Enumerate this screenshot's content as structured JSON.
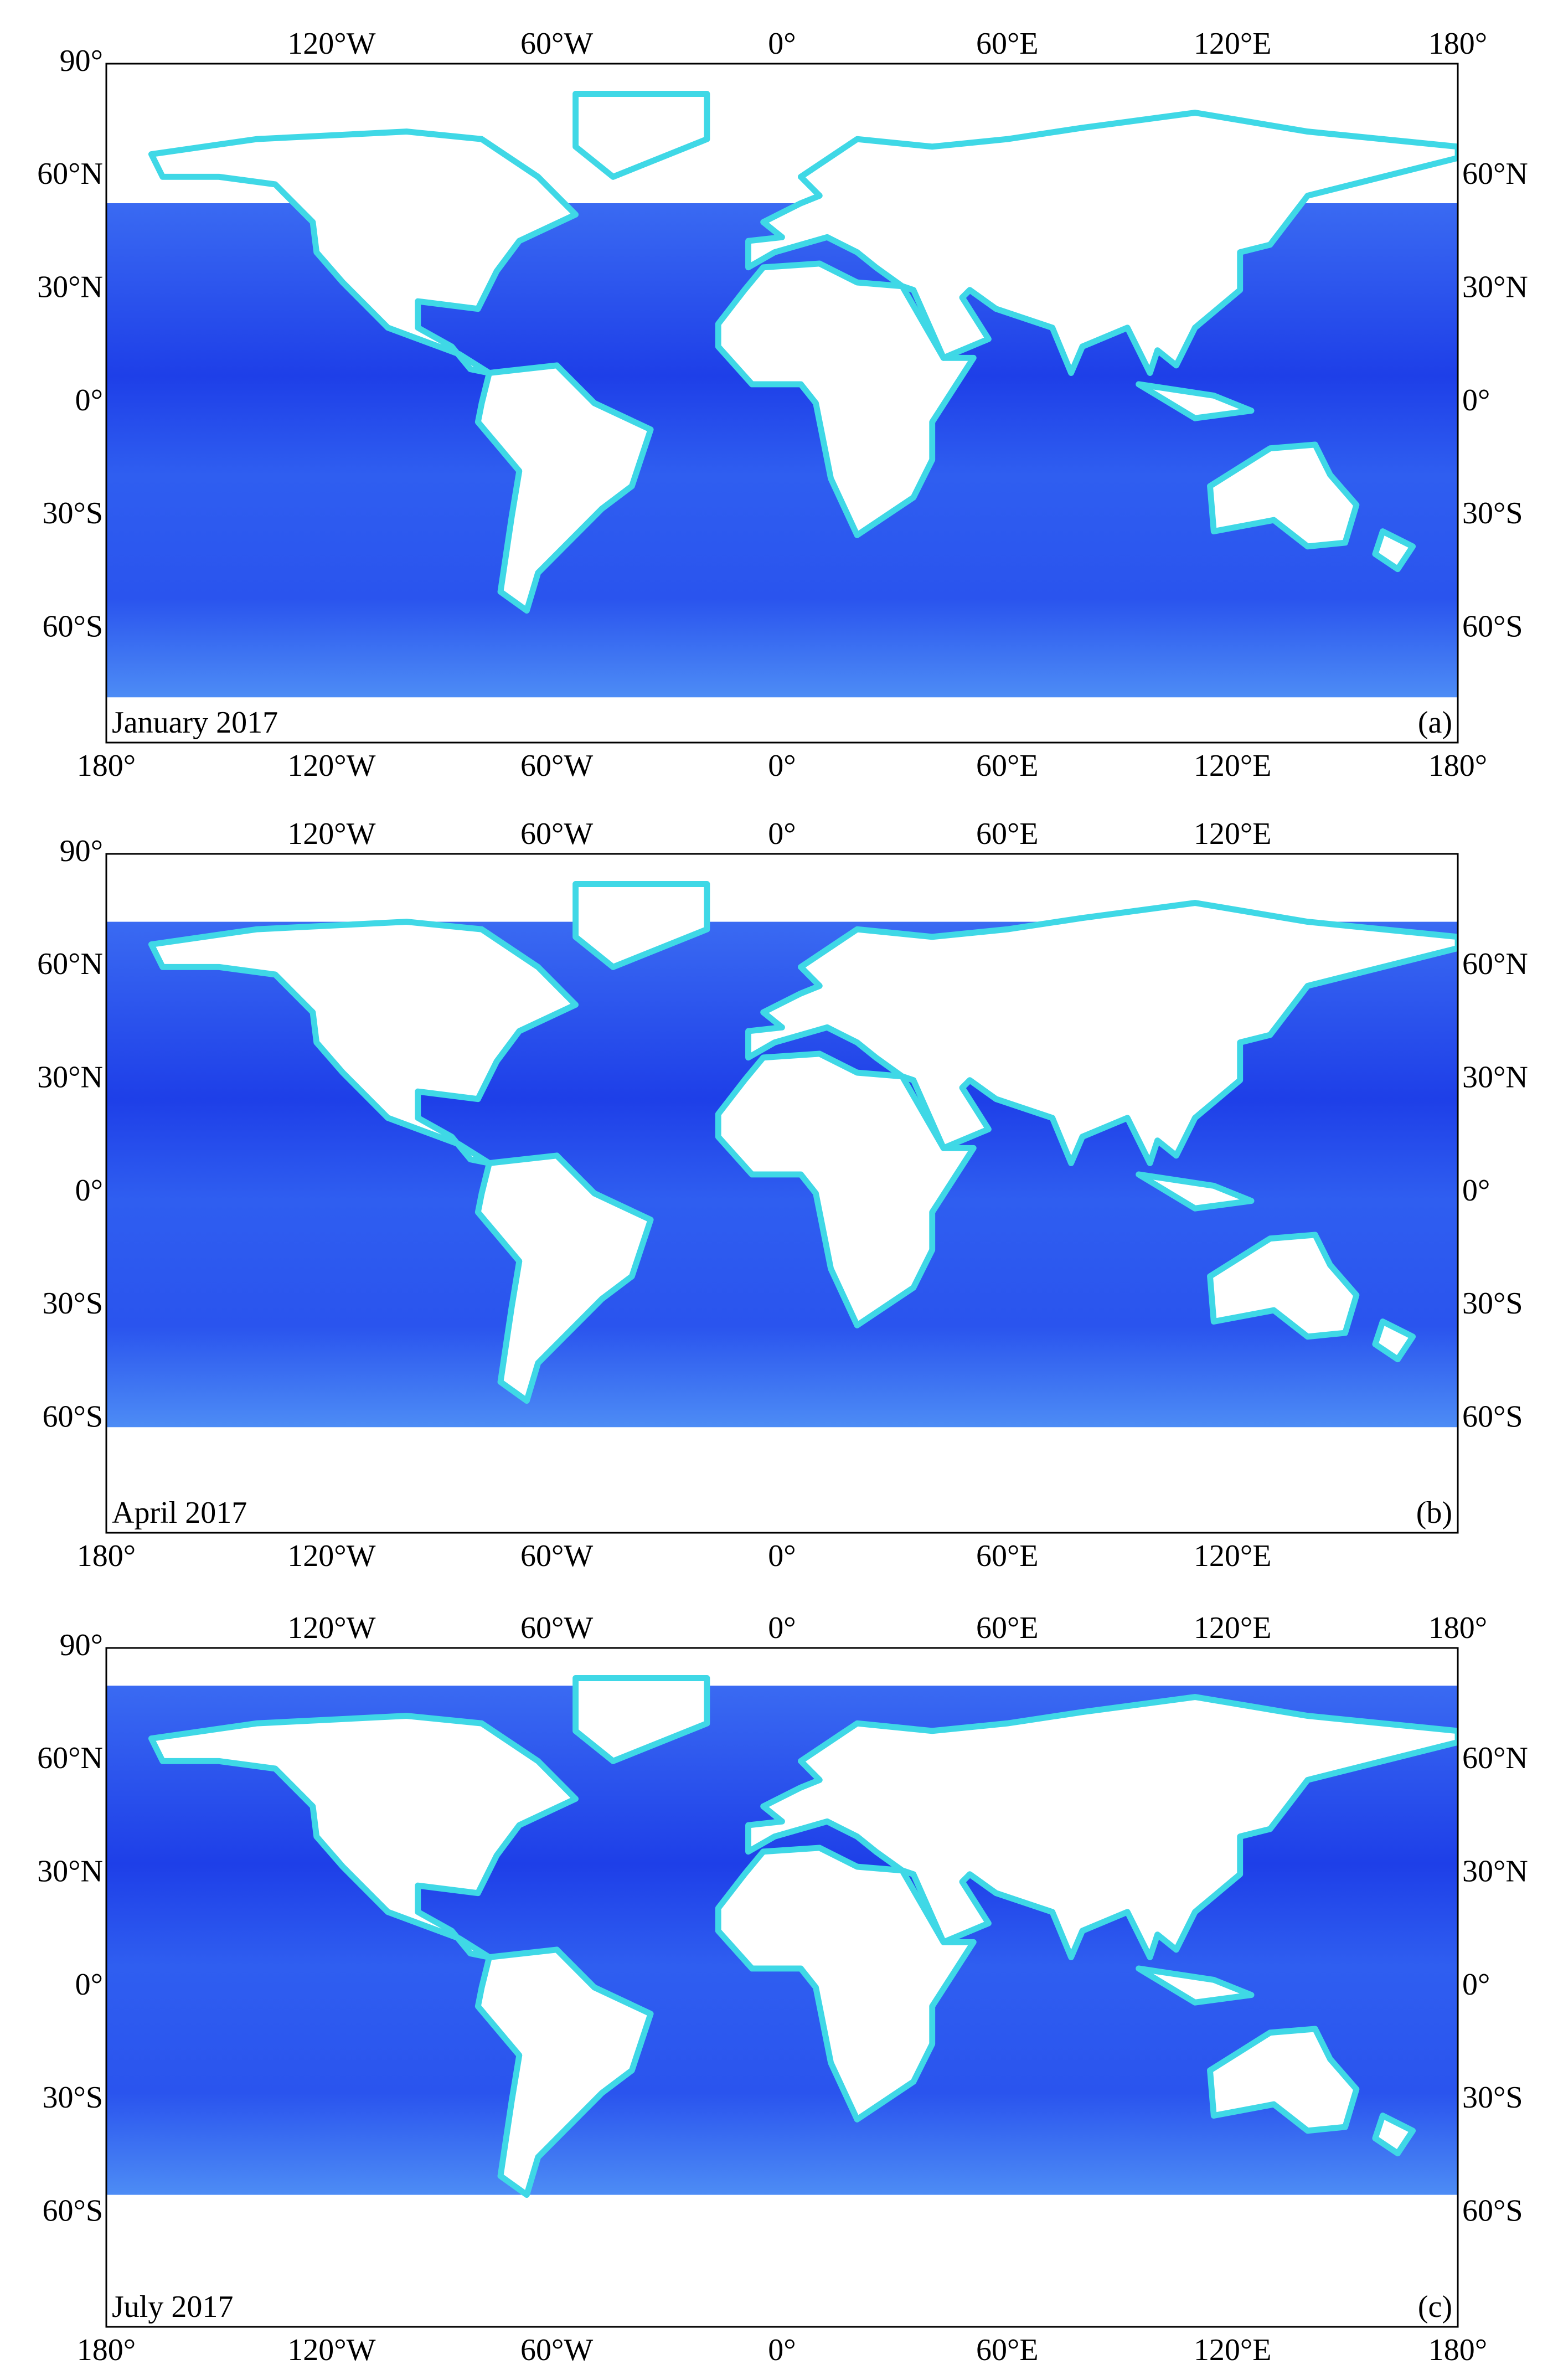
{
  "panels": [
    {
      "date": "January 2017",
      "letter": "(a)",
      "top_ticks": [
        {
          "value": -120,
          "label": "120°W"
        },
        {
          "value": -60,
          "label": "60°W"
        },
        {
          "value": 0,
          "label": "0°"
        },
        {
          "value": 60,
          "label": "60°E"
        },
        {
          "value": 120,
          "label": "120°E"
        },
        {
          "value": 180,
          "label": "180°"
        }
      ],
      "bottom_ticks": [
        {
          "value": -180,
          "label": "180°"
        },
        {
          "value": -120,
          "label": "120°W"
        },
        {
          "value": -60,
          "label": "60°W"
        },
        {
          "value": 0,
          "label": "0°"
        },
        {
          "value": 60,
          "label": "60°E"
        },
        {
          "value": 120,
          "label": "120°E"
        },
        {
          "value": 180,
          "label": "180°"
        }
      ],
      "left_ticks": [
        {
          "value": 90,
          "label": "90°"
        },
        {
          "value": 60,
          "label": "60°N"
        },
        {
          "value": 30,
          "label": "30°N"
        },
        {
          "value": 0,
          "label": "0°"
        },
        {
          "value": -30,
          "label": "30°S"
        },
        {
          "value": -60,
          "label": "60°S"
        }
      ],
      "right_ticks": [
        {
          "value": 60,
          "label": "60°N"
        },
        {
          "value": 30,
          "label": "30°N"
        },
        {
          "value": 0,
          "label": "0°"
        },
        {
          "value": -30,
          "label": "30°S"
        },
        {
          "value": -60,
          "label": "60°S"
        }
      ]
    },
    {
      "date": "April 2017",
      "letter": "(b)",
      "top_ticks": [
        {
          "value": -120,
          "label": "120°W"
        },
        {
          "value": -60,
          "label": "60°W"
        },
        {
          "value": 0,
          "label": "0°"
        },
        {
          "value": 60,
          "label": "60°E"
        },
        {
          "value": 120,
          "label": "120°E"
        }
      ],
      "bottom_ticks": [
        {
          "value": -180,
          "label": "180°"
        },
        {
          "value": -120,
          "label": "120°W"
        },
        {
          "value": -60,
          "label": "60°W"
        },
        {
          "value": 0,
          "label": "0°"
        },
        {
          "value": 60,
          "label": "60°E"
        },
        {
          "value": 120,
          "label": "120°E"
        }
      ],
      "left_ticks": [
        {
          "value": 90,
          "label": "90°"
        },
        {
          "value": 60,
          "label": "60°N"
        },
        {
          "value": 30,
          "label": "30°N"
        },
        {
          "value": 0,
          "label": "0°"
        },
        {
          "value": -30,
          "label": "30°S"
        },
        {
          "value": -60,
          "label": "60°S"
        }
      ],
      "right_ticks": [
        {
          "value": 60,
          "label": "60°N"
        },
        {
          "value": 30,
          "label": "30°N"
        },
        {
          "value": 0,
          "label": "0°"
        },
        {
          "value": -30,
          "label": "30°S"
        },
        {
          "value": -60,
          "label": "60°S"
        }
      ]
    },
    {
      "date": "July 2017",
      "letter": "(c)",
      "top_ticks": [
        {
          "value": -120,
          "label": "120°W"
        },
        {
          "value": -60,
          "label": "60°W"
        },
        {
          "value": 0,
          "label": "0°"
        },
        {
          "value": 60,
          "label": "60°E"
        },
        {
          "value": 120,
          "label": "120°E"
        },
        {
          "value": 180,
          "label": "180°"
        }
      ],
      "bottom_ticks": [
        {
          "value": -180,
          "label": "180°"
        },
        {
          "value": -120,
          "label": "120°W"
        },
        {
          "value": -60,
          "label": "60°W"
        },
        {
          "value": 0,
          "label": "0°"
        },
        {
          "value": 60,
          "label": "60°E"
        },
        {
          "value": 120,
          "label": "120°E"
        },
        {
          "value": 180,
          "label": "180°"
        }
      ],
      "left_ticks": [
        {
          "value": 90,
          "label": "90°"
        },
        {
          "value": 60,
          "label": "60°N"
        },
        {
          "value": 30,
          "label": "30°N"
        },
        {
          "value": 0,
          "label": "0°"
        },
        {
          "value": -30,
          "label": "30°S"
        },
        {
          "value": -60,
          "label": "60°S"
        }
      ],
      "right_ticks": [
        {
          "value": 60,
          "label": "60°N"
        },
        {
          "value": 30,
          "label": "30°N"
        },
        {
          "value": 0,
          "label": "0°"
        },
        {
          "value": -30,
          "label": "30°S"
        },
        {
          "value": -60,
          "label": "60°S"
        }
      ]
    }
  ]
}
